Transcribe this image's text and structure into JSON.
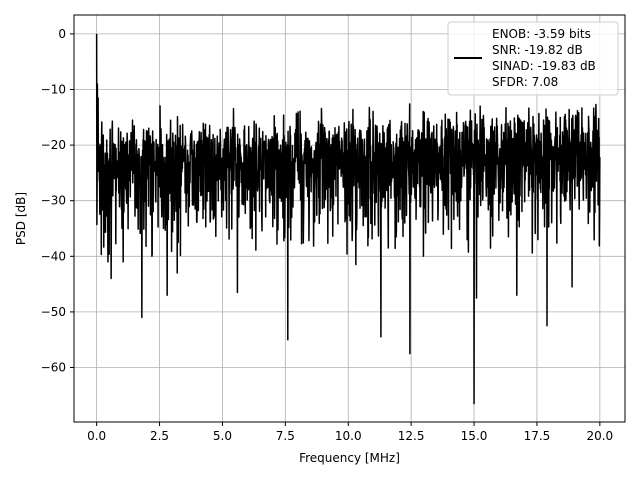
{
  "chart_data": {
    "type": "line",
    "xlabel": "Frequency [MHz]",
    "ylabel": "PSD [dB]",
    "xlim": [
      -0.9,
      21.0
    ],
    "ylim": [
      -69.8,
      3.4
    ],
    "xticks": [
      0.0,
      2.5,
      5.0,
      7.5,
      10.0,
      12.5,
      15.0,
      17.5,
      20.0
    ],
    "xtick_labels": [
      "0.0",
      "2.5",
      "5.0",
      "7.5",
      "10.0",
      "12.5",
      "15.0",
      "17.5",
      "20.0"
    ],
    "yticks": [
      0,
      -10,
      -20,
      -30,
      -40,
      -50,
      -60
    ],
    "ytick_labels": [
      "0",
      "−10",
      "−20",
      "−30",
      "−40",
      "−50",
      "−60"
    ],
    "grid": true,
    "legend": {
      "placement": "top-right",
      "lines": [
        "ENOB: -3.59 bits",
        "SNR: -19.82 dB",
        "SINAD: -19.83 dB",
        "SFDR: 7.08"
      ]
    },
    "series": [
      {
        "color": "#000000",
        "x_range": [
          0.0,
          20.0
        ],
        "n_points": 2049,
        "noise_floor": {
          "start_mean_db": -22.5,
          "end_mean_db": -20.0,
          "upper_envelope_db": [
            -15,
            -10
          ],
          "lower_envelope_db": [
            -28,
            -40
          ]
        },
        "peaks": [
          {
            "x": 0.0,
            "y": 0.0
          },
          {
            "x": 0.03,
            "y": -9.0
          },
          {
            "x": 0.06,
            "y": -11.5
          }
        ],
        "notable_dips": [
          {
            "x": 0.3,
            "y": -34.0
          },
          {
            "x": 0.45,
            "y": -41.0
          },
          {
            "x": 0.58,
            "y": -44.0
          },
          {
            "x": 1.05,
            "y": -41.0
          },
          {
            "x": 1.8,
            "y": -51.0
          },
          {
            "x": 2.2,
            "y": -40.0
          },
          {
            "x": 2.8,
            "y": -47.0
          },
          {
            "x": 3.2,
            "y": -43.0
          },
          {
            "x": 5.6,
            "y": -46.5
          },
          {
            "x": 7.6,
            "y": -55.0
          },
          {
            "x": 10.3,
            "y": -41.5
          },
          {
            "x": 11.3,
            "y": -54.5
          },
          {
            "x": 12.45,
            "y": -57.5
          },
          {
            "x": 15.0,
            "y": -66.5
          },
          {
            "x": 15.1,
            "y": -47.5
          },
          {
            "x": 16.7,
            "y": -47.0
          },
          {
            "x": 17.9,
            "y": -52.5
          },
          {
            "x": 18.9,
            "y": -45.5
          }
        ]
      }
    ]
  }
}
